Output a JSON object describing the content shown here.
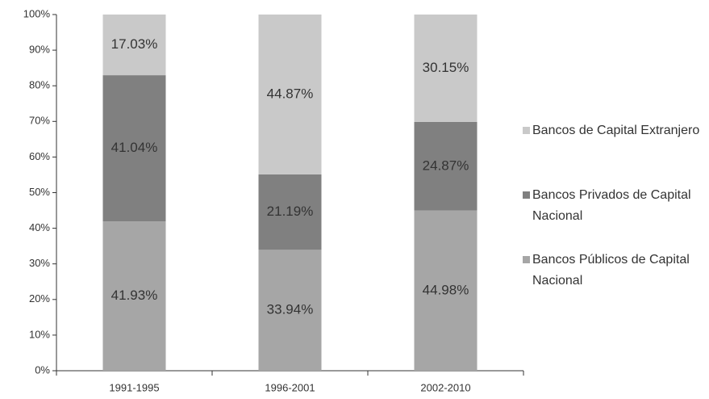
{
  "chart_data": {
    "type": "stacked_bar",
    "categories": [
      "1991-1995",
      "1996-2001",
      "2002-2010"
    ],
    "series": [
      {
        "name": "Bancos Públicos de Capital Nacional",
        "color": "#a6a6a6",
        "values": [
          41.93,
          33.94,
          44.98
        ],
        "value_labels": [
          "41.93%",
          "33.94%",
          "44.98%"
        ]
      },
      {
        "name": "Bancos Privados de Capital Nacional",
        "color": "#808080",
        "values": [
          41.04,
          21.19,
          24.87
        ],
        "value_labels": [
          "41.04%",
          "21.19%",
          "24.87%"
        ]
      },
      {
        "name": "Bancos de Capital Extranjero",
        "color": "#c9c9c9",
        "values": [
          17.03,
          44.87,
          30.15
        ],
        "value_labels": [
          "17.03%",
          "44.87%",
          "30.15%"
        ]
      }
    ],
    "ylim": [
      0,
      100
    ],
    "yticks": [
      {
        "value": 0,
        "label": "0%"
      },
      {
        "value": 10,
        "label": "10%"
      },
      {
        "value": 20,
        "label": "20%"
      },
      {
        "value": 30,
        "label": "30%"
      },
      {
        "value": 40,
        "label": "40%"
      },
      {
        "value": 50,
        "label": "50%"
      },
      {
        "value": 60,
        "label": "60%"
      },
      {
        "value": 70,
        "label": "70%"
      },
      {
        "value": 80,
        "label": "80%"
      },
      {
        "value": 90,
        "label": "90%"
      },
      {
        "value": 100,
        "label": "100%"
      }
    ],
    "legend": "right"
  }
}
